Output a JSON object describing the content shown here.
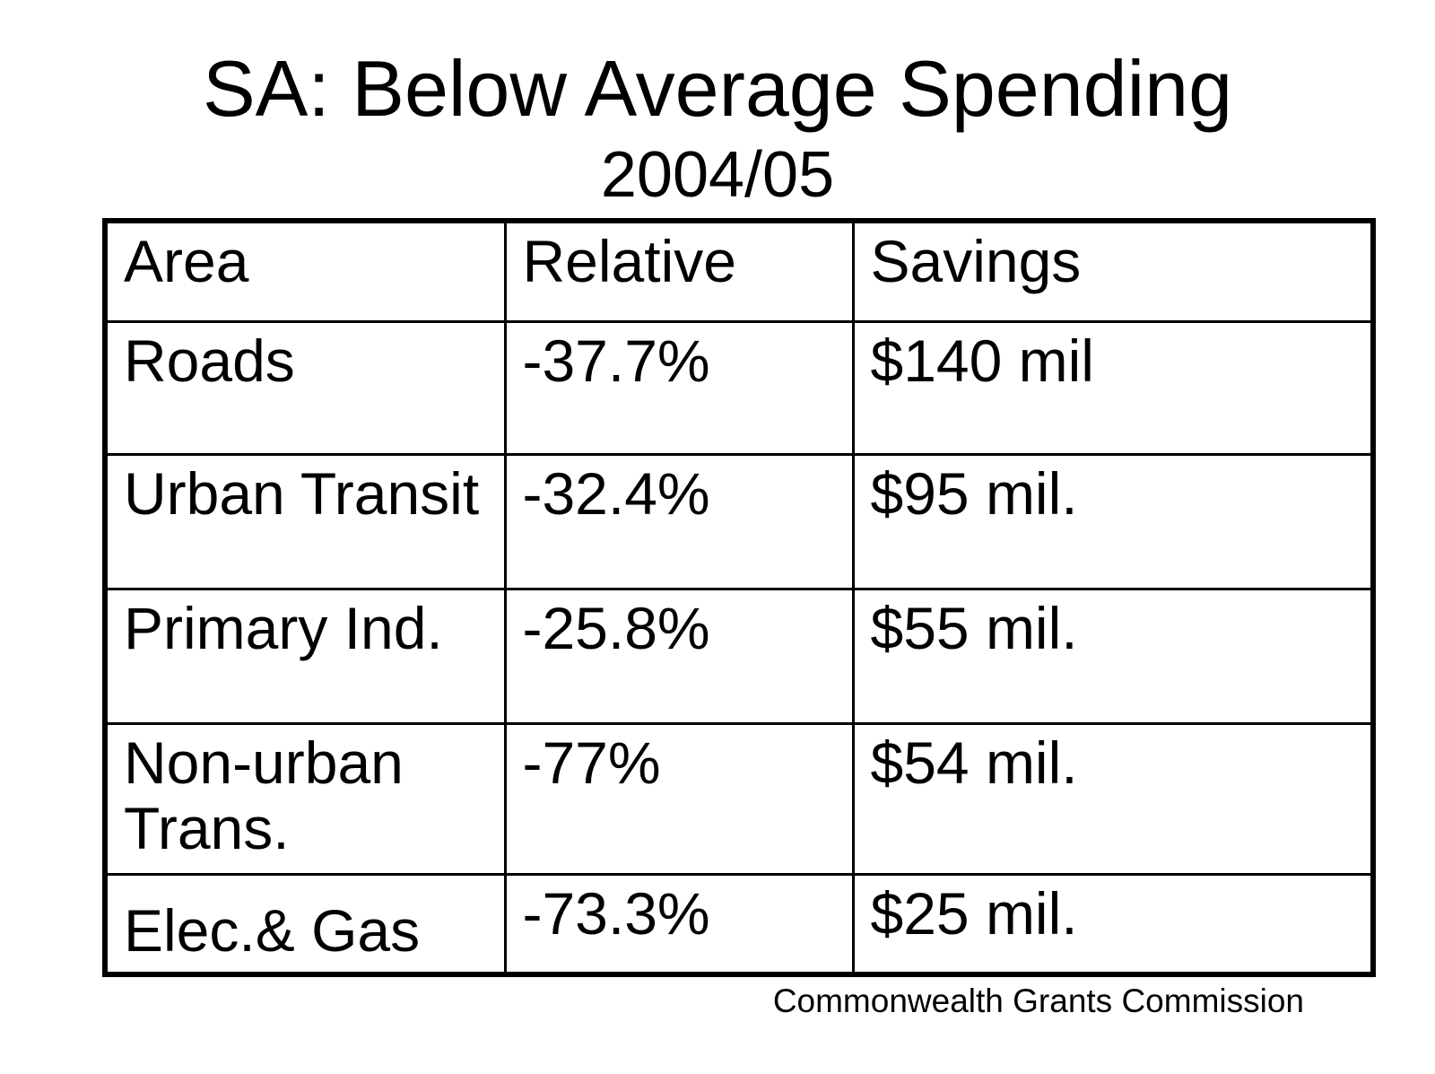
{
  "slide": {
    "title": "SA: Below Average Spending",
    "subtitle": "2004/05",
    "footer": "Commonwealth Grants Commission",
    "colors": {
      "background": "#ffffff",
      "text": "#000000",
      "table_border": "#000000"
    }
  },
  "table": {
    "headers": {
      "area": "Area",
      "relative": "Relative",
      "savings": "Savings"
    },
    "rows": [
      {
        "area": "Roads",
        "relative": "-37.7%",
        "savings": "$140 mil"
      },
      {
        "area": "Urban Transit",
        "relative": "-32.4%",
        "savings": "$95 mil."
      },
      {
        "area": "Primary Ind.",
        "relative": "-25.8%",
        "savings": "$55 mil."
      },
      {
        "area": "Non-urban Trans.",
        "relative": "-77%",
        "savings": "$54 mil."
      },
      {
        "area": "Elec.& Gas",
        "relative": "-73.3%",
        "savings": "$25 mil."
      }
    ]
  }
}
